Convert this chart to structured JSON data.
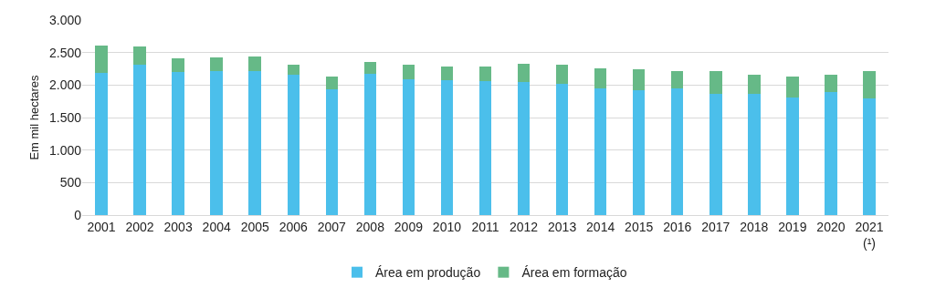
{
  "chart_data": {
    "type": "bar",
    "stacked": true,
    "ylabel": "Em mil hectares",
    "categories": [
      "2001",
      "2002",
      "2003",
      "2004",
      "2005",
      "2006",
      "2007",
      "2008",
      "2009",
      "2010",
      "2011",
      "2012",
      "2013",
      "2014",
      "2015",
      "2016",
      "2017",
      "2018",
      "2019",
      "2020",
      "2021\n(¹)"
    ],
    "series": [
      {
        "name": "Área em produção",
        "color": "#4bbfeb",
        "values": [
          2180,
          2310,
          2200,
          2210,
          2220,
          2160,
          1940,
          2170,
          2090,
          2080,
          2060,
          2050,
          2020,
          1950,
          1920,
          1950,
          1860,
          1860,
          1810,
          1890,
          1800
        ]
      },
      {
        "name": "Área em formação",
        "color": "#66b987",
        "values": [
          430,
          280,
          210,
          210,
          220,
          160,
          190,
          190,
          230,
          210,
          220,
          280,
          290,
          310,
          330,
          270,
          350,
          300,
          320,
          270,
          420
        ]
      }
    ],
    "ylim": [
      0,
      3000
    ],
    "yticks": [
      0,
      {
        "value": 500,
        "label": "500"
      },
      {
        "value": 1000,
        "label": "1.000"
      },
      {
        "value": 1500,
        "label": "1.500"
      },
      {
        "value": 2000,
        "label": "2.000"
      },
      {
        "value": 2500,
        "label": "2.500"
      },
      {
        "value": 3000,
        "label": "3.000"
      }
    ],
    "grid": "y",
    "legend": "bottom"
  }
}
